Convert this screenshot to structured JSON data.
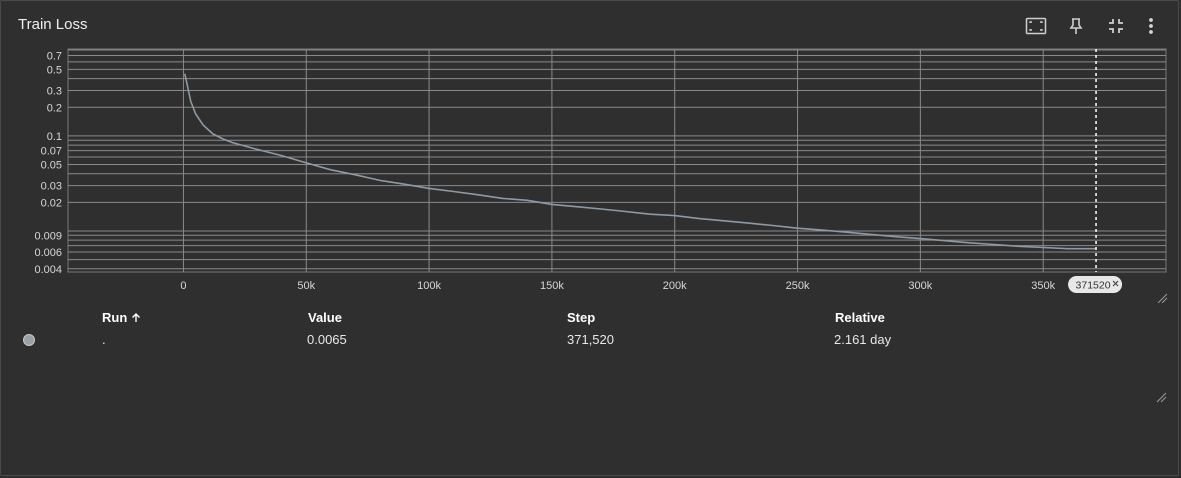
{
  "card": {
    "title": "Train Loss"
  },
  "toolbar": {
    "fit_icon": "fit-domain-icon",
    "pin_icon": "pin-icon",
    "collapse_icon": "collapse-icon",
    "more_icon": "more-vert-icon"
  },
  "colors": {
    "background": "#2f2f2f",
    "grid": "#8a8a8a",
    "line": "#8e9aa3",
    "axis_text": "#d7d7d7",
    "cursor": "#ffffff"
  },
  "chart_data": {
    "type": "line",
    "title": "",
    "xlabel": "",
    "ylabel": "",
    "yscale": "log",
    "xlim": [
      -47000,
      400000
    ],
    "ylim": [
      0.0037,
      0.82
    ],
    "x_ticks": [
      0,
      50000,
      100000,
      150000,
      200000,
      250000,
      300000,
      350000
    ],
    "x_tick_labels": [
      "0",
      "50k",
      "100k",
      "150k",
      "200k",
      "250k",
      "300k",
      "350k"
    ],
    "y_ticks": [
      0.7,
      0.5,
      0.3,
      0.2,
      0.1,
      0.07,
      0.05,
      0.03,
      0.02,
      0.009,
      0.006,
      0.004
    ],
    "y_tick_labels": [
      "0.7",
      "0.5",
      "0.3",
      "0.2",
      "0.1",
      "0.07",
      "0.05",
      "0.03",
      "0.02",
      "0.009",
      "0.006",
      "0.004"
    ],
    "grid": true,
    "series": [
      {
        "name": ".",
        "x": [
          500,
          1000,
          2000,
          3000,
          5000,
          8000,
          12000,
          16000,
          20000,
          30000,
          40000,
          50000,
          60000,
          70000,
          80000,
          90000,
          100000,
          110000,
          120000,
          130000,
          140000,
          150000,
          160000,
          170000,
          180000,
          190000,
          200000,
          210000,
          220000,
          230000,
          240000,
          250000,
          260000,
          270000,
          280000,
          290000,
          300000,
          310000,
          320000,
          330000,
          340000,
          350000,
          360000,
          371520
        ],
        "y": [
          0.45,
          0.4,
          0.3,
          0.23,
          0.17,
          0.13,
          0.105,
          0.093,
          0.085,
          0.072,
          0.062,
          0.052,
          0.044,
          0.039,
          0.034,
          0.031,
          0.028,
          0.026,
          0.024,
          0.022,
          0.021,
          0.019,
          0.018,
          0.017,
          0.016,
          0.015,
          0.0145,
          0.0135,
          0.0128,
          0.0121,
          0.0114,
          0.0107,
          0.0102,
          0.0097,
          0.0092,
          0.0087,
          0.0083,
          0.0079,
          0.0075,
          0.0072,
          0.0069,
          0.0067,
          0.0065,
          0.0065
        ]
      }
    ],
    "cursor_step": 371520,
    "cursor_label": "371520"
  },
  "table": {
    "headers": {
      "run": "Run",
      "value": "Value",
      "step": "Step",
      "relative": "Relative"
    },
    "sort_icon": "arrow-up-icon",
    "rows": [
      {
        "run": ".",
        "value": "0.0065",
        "step": "371,520",
        "relative": "2.161 day"
      }
    ]
  }
}
